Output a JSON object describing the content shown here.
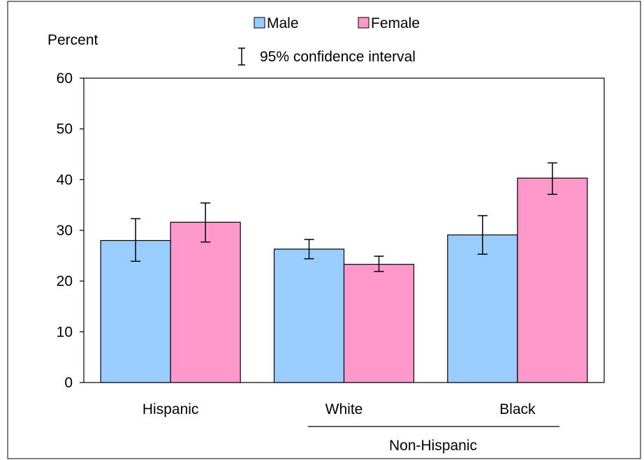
{
  "chart_data": {
    "type": "bar",
    "ylabel": "Percent",
    "ylim": [
      0,
      60
    ],
    "yticks": [
      0,
      10,
      20,
      30,
      40,
      50,
      60
    ],
    "categories": [
      "Hispanic",
      "White",
      "Black"
    ],
    "group_label": "Non-Hispanic",
    "series": [
      {
        "name": "Male",
        "color": "#99ccff",
        "values": [
          28.0,
          26.3,
          29.1
        ],
        "ci_low": [
          23.9,
          24.4,
          25.3
        ],
        "ci_high": [
          32.3,
          28.2,
          32.9
        ]
      },
      {
        "name": "Female",
        "color": "#ff99cc",
        "values": [
          31.6,
          23.3,
          40.3
        ],
        "ci_low": [
          27.7,
          21.9,
          37.1
        ],
        "ci_high": [
          35.4,
          24.9,
          43.3
        ]
      }
    ],
    "legend_ci_label": "95% confidence interval",
    "legend_position": "top"
  }
}
